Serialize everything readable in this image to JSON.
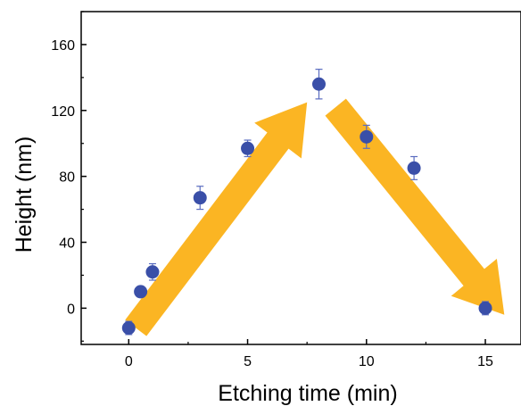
{
  "chart_data": {
    "type": "scatter",
    "xlabel": "Etching time (min)",
    "ylabel": "Height (nm)",
    "xlim": [
      -2,
      16.5
    ],
    "ylim": [
      -22,
      180
    ],
    "xticks": [
      0,
      5,
      10,
      15
    ],
    "yticks": [
      0,
      40,
      80,
      120,
      160
    ],
    "xtick_labels": [
      "0",
      "5",
      "10",
      "15"
    ],
    "ytick_labels": [
      "0",
      "40",
      "80",
      "120",
      "160"
    ],
    "grid": false,
    "series": [
      {
        "color": "#3a4fa8",
        "errorbar_color": "#5a6cc0",
        "x": [
          0,
          0.5,
          1,
          3,
          5,
          8,
          10,
          12,
          15
        ],
        "y": [
          -12,
          10,
          22,
          67,
          97,
          136,
          104,
          85,
          0
        ],
        "yerr": [
          4,
          3,
          5,
          7,
          5,
          9,
          7,
          7,
          4
        ]
      }
    ],
    "annotations": [
      {
        "type": "arrow",
        "color": "#fbb523",
        "from": [
          0.3,
          -12
        ],
        "to": [
          7.5,
          125
        ]
      },
      {
        "type": "arrow",
        "color": "#fbb523",
        "from": [
          8.7,
          122
        ],
        "to": [
          15.8,
          -4
        ]
      }
    ]
  }
}
